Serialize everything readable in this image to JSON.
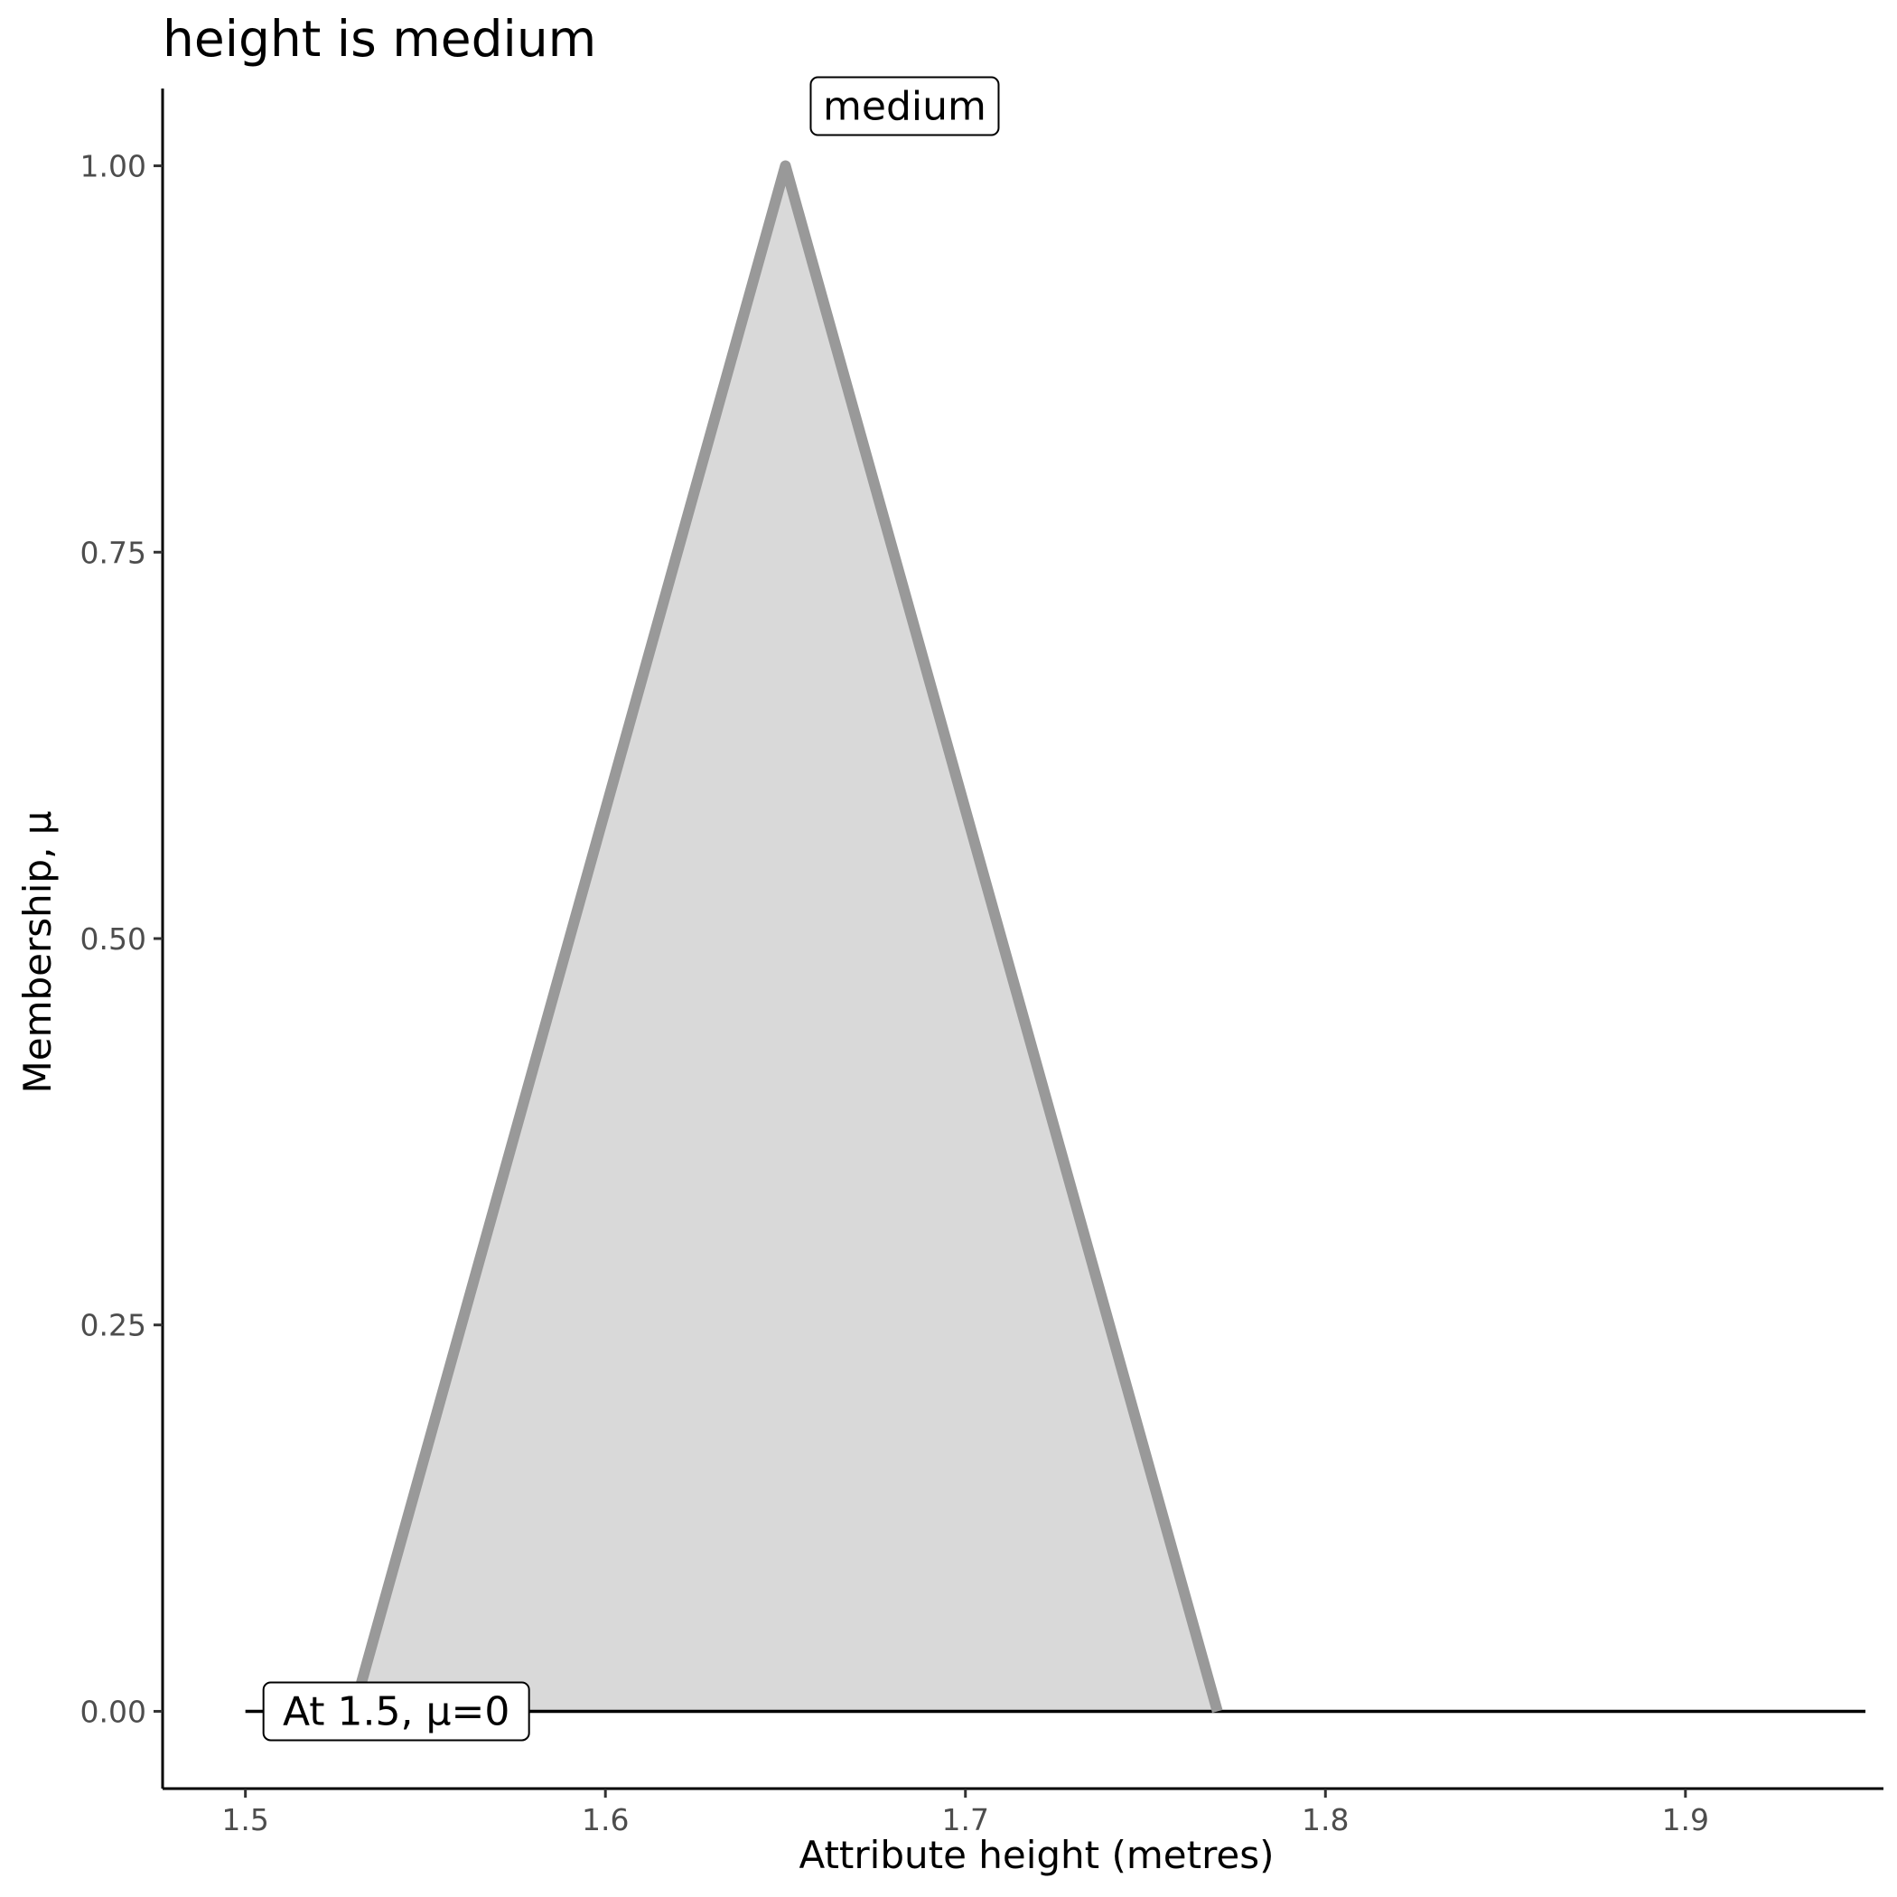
{
  "chart_data": {
    "type": "area",
    "title": "height is medium",
    "xlabel": "Attribute height (metres)",
    "ylabel": "Membership, μ",
    "xlim": [
      1.477,
      1.955
    ],
    "ylim": [
      -0.05,
      1.05
    ],
    "x_ticks": [
      1.5,
      1.6,
      1.7,
      1.8,
      1.9
    ],
    "x_tick_labels": [
      "1.5",
      "1.6",
      "1.7",
      "1.8",
      "1.9"
    ],
    "y_ticks": [
      0.0,
      0.25,
      0.5,
      0.75,
      1.0
    ],
    "y_tick_labels": [
      "0.00",
      "0.25",
      "0.50",
      "0.75",
      "1.00"
    ],
    "grid": false,
    "baseline": {
      "x": [
        1.5,
        1.95
      ],
      "y": 0
    },
    "series": [
      {
        "name": "medium",
        "x": [
          1.53,
          1.65,
          1.77
        ],
        "y": [
          0,
          1,
          0
        ],
        "line_color": "#999999",
        "fill_color": "#d9d9d9"
      }
    ],
    "annotations": [
      {
        "text": "medium",
        "x": 1.65,
        "y": 1.0
      },
      {
        "text": "At 1.5, μ=0",
        "x": 1.5,
        "y": 0
      }
    ]
  }
}
